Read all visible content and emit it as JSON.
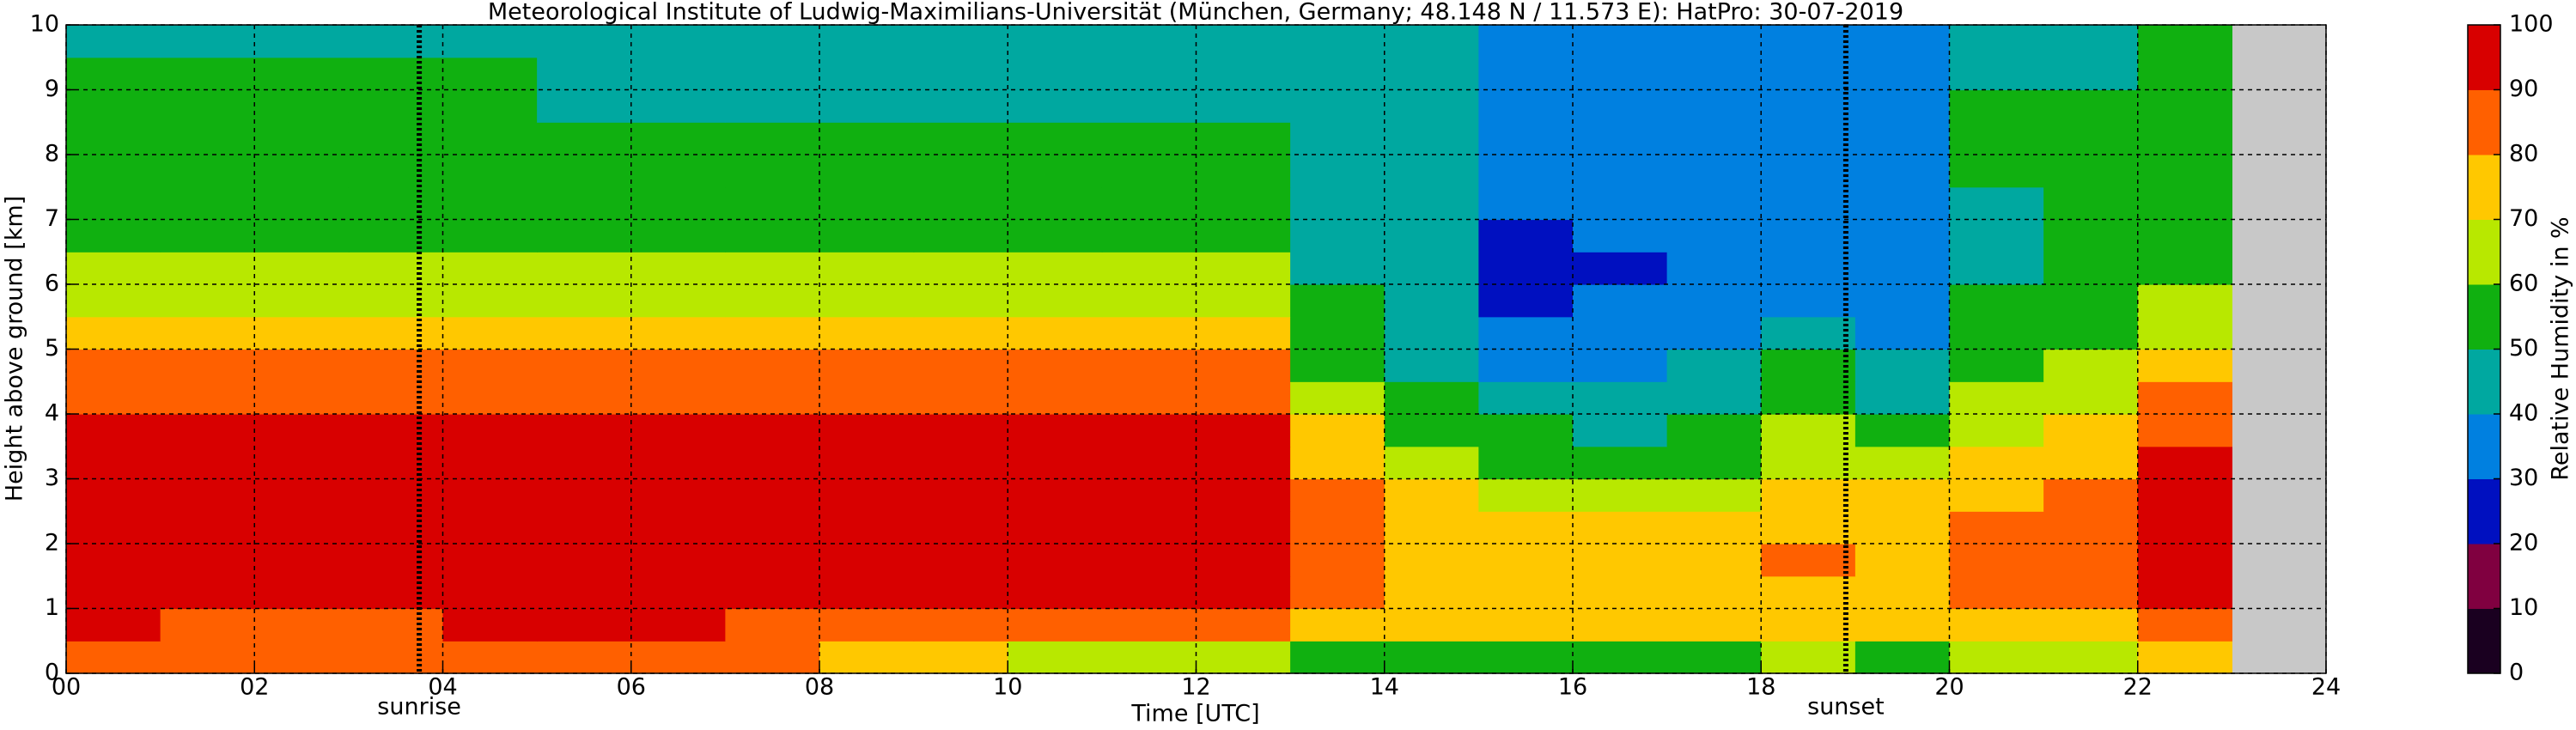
{
  "chart_data": {
    "type": "heatmap",
    "title": "Meteorological Institute of Ludwig-Maximilians-Universität (München, Germany; 48.148 N / 11.573 E):    HatPro: 30-07-2019",
    "x_label": "Time [UTC]",
    "y_label": "Height above ground [km]",
    "colorbar_label": "Relative Humidity in %",
    "xlim": [
      0,
      24
    ],
    "ylim": [
      0,
      10
    ],
    "zlim": [
      0,
      100
    ],
    "xticks": [
      {
        "value": 0,
        "label": "00"
      },
      {
        "value": 2,
        "label": "02"
      },
      {
        "value": 4,
        "label": "04"
      },
      {
        "value": 6,
        "label": "06"
      },
      {
        "value": 8,
        "label": "08"
      },
      10,
      12,
      14,
      16,
      18,
      20,
      22,
      24
    ],
    "yticks": [
      0,
      1,
      2,
      3,
      4,
      5,
      6,
      7,
      8,
      9,
      10
    ],
    "zticks": [
      0,
      10,
      20,
      30,
      40,
      50,
      60,
      70,
      80,
      90,
      100
    ],
    "grid": true,
    "colors": [
      "#1a0020",
      "#800040",
      "#0010c0",
      "#0080e0",
      "#00a8a0",
      "#10b010",
      "#b8e800",
      "#ffc800",
      "#ff6000",
      "#d80000"
    ],
    "missing_color": "#c8c8c8",
    "annotations": [
      {
        "label": "sunrise",
        "x": 3.75
      },
      {
        "label": "sunset",
        "x": 18.9
      }
    ],
    "xbins": [
      0,
      1,
      2,
      3,
      4,
      5,
      6,
      7,
      8,
      9,
      10,
      11,
      12,
      13,
      14,
      15,
      16,
      17,
      18,
      19,
      20,
      21,
      22,
      23
    ],
    "ybins": [
      0,
      0.5,
      1,
      1.5,
      2,
      2.5,
      3,
      3.5,
      4,
      4.5,
      5,
      5.5,
      6,
      6.5,
      7,
      7.5,
      8,
      8.5,
      9,
      9.5,
      10
    ],
    "values": [
      [
        85,
        85,
        82,
        80,
        82,
        85,
        82,
        80,
        72,
        70,
        68,
        68,
        68,
        58,
        58,
        55,
        55,
        55,
        60,
        58,
        60,
        62,
        70
      ],
      [
        90,
        88,
        85,
        88,
        90,
        90,
        90,
        88,
        86,
        86,
        85,
        85,
        85,
        72,
        72,
        73,
        73,
        72,
        75,
        74,
        78,
        78,
        88
      ],
      [
        93,
        93,
        93,
        93,
        93,
        93,
        93,
        93,
        93,
        93,
        93,
        93,
        93,
        85,
        77,
        75,
        75,
        75,
        78,
        76,
        82,
        82,
        90
      ],
      [
        93,
        93,
        93,
        93,
        93,
        93,
        93,
        93,
        93,
        93,
        93,
        93,
        93,
        87,
        78,
        76,
        76,
        76,
        80,
        76,
        84,
        84,
        91
      ],
      [
        93,
        93,
        93,
        93,
        93,
        93,
        93,
        93,
        93,
        93,
        93,
        93,
        93,
        87,
        77,
        74,
        74,
        74,
        78,
        74,
        83,
        85,
        91
      ],
      [
        93,
        93,
        93,
        93,
        93,
        93,
        93,
        93,
        93,
        93,
        93,
        93,
        93,
        84,
        72,
        67,
        67,
        67,
        72,
        70,
        77,
        80,
        90
      ],
      [
        92,
        92,
        92,
        92,
        92,
        92,
        92,
        92,
        92,
        92,
        92,
        92,
        92,
        78,
        63,
        57,
        56,
        56,
        68,
        62,
        73,
        75,
        90
      ],
      [
        91,
        91,
        91,
        91,
        91,
        91,
        91,
        91,
        91,
        91,
        91,
        91,
        91,
        72,
        56,
        50,
        48,
        50,
        62,
        55,
        68,
        70,
        87
      ],
      [
        89,
        89,
        89,
        89,
        89,
        89,
        86,
        86,
        86,
        86,
        86,
        86,
        86,
        62,
        50,
        40,
        40,
        43,
        58,
        46,
        63,
        65,
        80
      ],
      [
        80,
        80,
        80,
        80,
        80,
        80,
        80,
        80,
        80,
        80,
        80,
        80,
        80,
        56,
        47,
        38,
        38,
        40,
        50,
        42,
        58,
        60,
        72
      ],
      [
        72,
        72,
        72,
        72,
        72,
        72,
        72,
        72,
        72,
        72,
        72,
        72,
        72,
        52,
        44,
        33,
        35,
        36,
        42,
        38,
        54,
        57,
        66
      ],
      [
        67,
        67,
        67,
        67,
        67,
        67,
        67,
        67,
        67,
        67,
        67,
        67,
        67,
        50,
        42,
        27,
        30,
        33,
        38,
        35,
        50,
        55,
        62
      ],
      [
        62,
        62,
        62,
        62,
        62,
        62,
        62,
        62,
        62,
        62,
        62,
        62,
        62,
        49,
        42,
        25,
        28,
        33,
        37,
        34,
        48,
        53,
        58
      ],
      [
        57,
        57,
        57,
        57,
        57,
        57,
        57,
        57,
        57,
        57,
        57,
        57,
        57,
        48,
        42,
        27,
        30,
        33,
        37,
        34,
        48,
        53,
        56
      ],
      [
        54,
        54,
        54,
        54,
        54,
        54,
        54,
        54,
        54,
        54,
        54,
        54,
        54,
        47,
        41,
        30,
        32,
        33,
        37,
        34,
        49,
        52,
        55
      ],
      [
        52,
        52,
        52,
        52,
        52,
        52,
        52,
        52,
        52,
        52,
        52,
        52,
        52,
        46,
        40,
        32,
        33,
        33,
        37,
        34,
        50,
        52,
        54
      ],
      [
        51,
        51,
        51,
        51,
        51,
        51,
        51,
        51,
        51,
        51,
        51,
        51,
        51,
        45,
        40,
        33,
        33,
        33,
        37,
        34,
        51,
        51,
        53
      ],
      [
        51,
        51,
        51,
        51,
        51,
        46,
        46,
        46,
        46,
        46,
        46,
        46,
        46,
        44,
        40,
        33,
        33,
        33,
        37,
        34,
        50,
        51,
        53
      ],
      [
        50,
        50,
        50,
        50,
        50,
        44,
        44,
        44,
        44,
        44,
        44,
        44,
        44,
        43,
        40,
        33,
        33,
        33,
        37,
        34,
        48,
        48,
        52
      ],
      [
        46,
        46,
        46,
        46,
        46,
        43,
        43,
        43,
        43,
        43,
        43,
        43,
        43,
        42,
        40,
        34,
        34,
        34,
        38,
        36,
        45,
        45,
        50
      ]
    ]
  }
}
